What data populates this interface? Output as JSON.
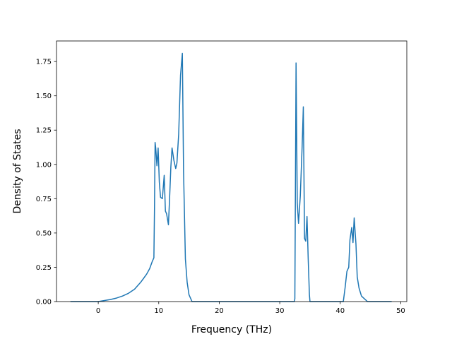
{
  "chart_data": {
    "type": "line",
    "title": "",
    "xlabel": "Frequency (THz)",
    "ylabel": "Density of States",
    "xlim": [
      -6.9,
      51.0
    ],
    "ylim": [
      0.0,
      1.9
    ],
    "grid": false,
    "xticks": [
      0,
      10,
      20,
      30,
      40,
      50
    ],
    "xtick_labels": [
      "0",
      "10",
      "20",
      "30",
      "40",
      "50"
    ],
    "yticks": [
      0.0,
      0.25,
      0.5,
      0.75,
      1.0,
      1.25,
      1.5,
      1.75
    ],
    "ytick_labels": [
      "0.00",
      "0.25",
      "0.50",
      "0.75",
      "1.00",
      "1.25",
      "1.50",
      "1.75"
    ],
    "series": [
      {
        "color": "#1f77b4",
        "x": [
          -4.6,
          0,
          2,
          3,
          4,
          5,
          6,
          7,
          7.5,
          8,
          8.5,
          8.9,
          9.2,
          9.3,
          9.4,
          9.5,
          9.7,
          9.9,
          10.1,
          10.3,
          10.6,
          10.9,
          11.1,
          11.3,
          11.6,
          11.8,
          12.0,
          12.2,
          12.5,
          12.8,
          13.0,
          13.3,
          13.6,
          13.9,
          14.1,
          14.4,
          14.7,
          15.0,
          15.5,
          16.0,
          32.4,
          32.5,
          32.7,
          32.9,
          33.1,
          33.4,
          33.7,
          33.9,
          34.1,
          34.3,
          34.5,
          34.7,
          34.9,
          35.0,
          35.1,
          40.5,
          40.8,
          41.1,
          41.4,
          41.6,
          41.9,
          42.1,
          42.3,
          42.6,
          42.8,
          43.1,
          43.5,
          44.0,
          44.5,
          48.5
        ],
        "y": [
          0.0,
          0.0,
          0.015,
          0.025,
          0.04,
          0.06,
          0.09,
          0.14,
          0.17,
          0.2,
          0.24,
          0.29,
          0.32,
          0.7,
          1.16,
          1.12,
          0.99,
          1.12,
          0.87,
          0.76,
          0.75,
          0.92,
          0.66,
          0.64,
          0.56,
          0.76,
          0.98,
          1.12,
          1.03,
          0.97,
          1.01,
          1.22,
          1.65,
          1.81,
          0.95,
          0.31,
          0.14,
          0.05,
          0.0,
          0.0,
          0.0,
          0.02,
          1.74,
          0.72,
          0.57,
          0.77,
          1.13,
          1.42,
          0.46,
          0.44,
          0.62,
          0.31,
          0.05,
          0.0,
          0.0,
          0.0,
          0.1,
          0.22,
          0.25,
          0.45,
          0.54,
          0.43,
          0.61,
          0.42,
          0.18,
          0.1,
          0.04,
          0.02,
          0.0,
          0.0
        ]
      }
    ]
  }
}
